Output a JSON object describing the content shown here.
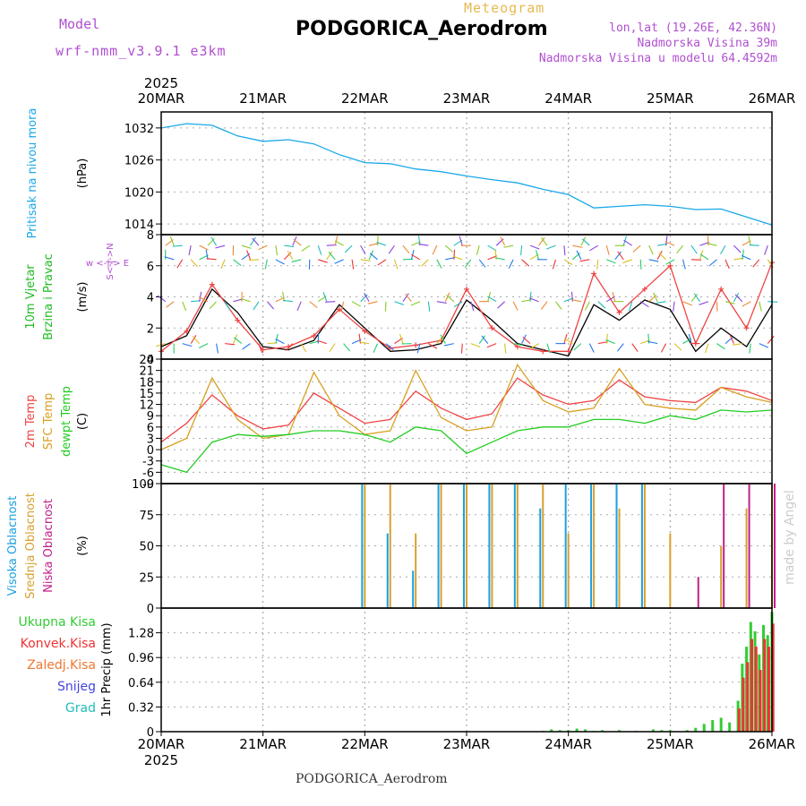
{
  "header": {
    "model_label": "Model",
    "model_name": "wrf-nmm_v3.9.1 e3km",
    "meteogram_label": "Meteogram",
    "station": "PODGORICA_Aerodrom",
    "coords": "lon,lat (19.26E, 42.36N)",
    "elevation": "Nadmorska Visina 39m",
    "elevation_model": "Nadmorska Visina u modelu 64.4592m",
    "watermark": "made by Angel"
  },
  "footer": {
    "station": "PODGORICA_Aerodrom"
  },
  "colors": {
    "pressure": "#1aa8e8",
    "temp2m": "#ee4444",
    "sfc": "#d8a020",
    "dewpt": "#22cc22",
    "high_cloud": "#1aa0e0",
    "mid_cloud": "#d8a030",
    "low_cloud": "#c0208a",
    "wind_label": "#22bb22",
    "wind_label2": "#22bb22",
    "compass": "#b050d0",
    "precip_total": "#33cc33",
    "precip_conv": "#ee3333",
    "precip_frozen": "#ee7733",
    "precip_snow": "#4444dd",
    "precip_grad": "#22bbbb"
  },
  "chart_data": [
    {
      "type": "line",
      "panel": "pressure",
      "ylabel_lines": [
        "Pritisak na nivou mora"
      ],
      "unit": "(hPa)",
      "ylim": [
        1012,
        1035
      ],
      "yticks": [
        1014,
        1020,
        1026,
        1032
      ],
      "x_hours": [
        0,
        6,
        12,
        18,
        24,
        30,
        36,
        42,
        48,
        54,
        60,
        66,
        72,
        78,
        84,
        90,
        96,
        102,
        108,
        114,
        120,
        126,
        132,
        138,
        144
      ],
      "series": [
        {
          "name": "Pritisak",
          "values": [
            1032.0,
            1032.8,
            1032.5,
            1030.5,
            1029.5,
            1029.8,
            1029.0,
            1027.0,
            1025.5,
            1025.3,
            1024.3,
            1023.8,
            1023.0,
            1022.3,
            1021.7,
            1020.5,
            1019.5,
            1017.0,
            1017.3,
            1017.6,
            1017.3,
            1016.7,
            1016.8,
            1015.3,
            1013.8
          ]
        }
      ]
    },
    {
      "type": "line",
      "panel": "wind",
      "ylabel_lines": [
        "10m Vjetar",
        "Brzina i Pravac"
      ],
      "unit": "(m/s)",
      "compass_label": "w <-|-> E",
      "compass_ns": "S<-|->N",
      "ylim": [
        0,
        8
      ],
      "yticks": [
        0,
        2,
        4,
        6,
        8
      ],
      "x_hours": [
        0,
        6,
        12,
        18,
        24,
        30,
        36,
        42,
        48,
        54,
        60,
        66,
        72,
        78,
        84,
        90,
        96,
        102,
        108,
        114,
        120,
        126,
        132,
        138,
        144
      ],
      "series": [
        {
          "name": "Brzina",
          "values": [
            0.8,
            1.5,
            4.5,
            3.0,
            0.8,
            0.6,
            1.2,
            3.5,
            2.0,
            0.5,
            0.6,
            1.0,
            3.8,
            2.5,
            1.0,
            0.6,
            0.2,
            3.5,
            2.5,
            3.8,
            3.2,
            0.5,
            2.0,
            0.8,
            3.5
          ]
        },
        {
          "name": "Udari",
          "values": [
            0.5,
            1.8,
            4.8,
            2.5,
            0.6,
            0.8,
            1.5,
            3.2,
            1.8,
            0.7,
            0.9,
            1.2,
            4.5,
            2.0,
            0.8,
            0.5,
            0.5,
            5.5,
            3.0,
            4.5,
            6.0,
            1.0,
            4.5,
            2.0,
            6.2
          ]
        }
      ]
    },
    {
      "type": "line",
      "panel": "temperature",
      "ylabel_lines": [
        "2m Temp",
        "SFC Temp",
        "dewpt Temp"
      ],
      "unit": "(C)",
      "ylim": [
        -9,
        24
      ],
      "yticks": [
        -9,
        -6,
        -3,
        0,
        3,
        6,
        9,
        12,
        15,
        18,
        21,
        24
      ],
      "x_hours": [
        0,
        6,
        12,
        18,
        24,
        30,
        36,
        42,
        48,
        54,
        60,
        66,
        72,
        78,
        84,
        90,
        96,
        102,
        108,
        114,
        120,
        126,
        132,
        138,
        144
      ],
      "series": [
        {
          "name": "2m Temp",
          "values": [
            2.0,
            7.0,
            14.5,
            9.0,
            5.5,
            6.5,
            15.0,
            11.0,
            7.0,
            8.0,
            15.5,
            11.0,
            8.0,
            9.5,
            19.0,
            14.5,
            12.0,
            13.0,
            18.5,
            14.0,
            13.0,
            12.5,
            16.5,
            15.5,
            13.0
          ]
        },
        {
          "name": "SFC Temp",
          "values": [
            0.0,
            3.0,
            19.0,
            8.0,
            3.0,
            4.0,
            20.5,
            9.0,
            4.0,
            5.0,
            21.0,
            8.5,
            5.0,
            6.0,
            22.5,
            13.0,
            10.0,
            11.0,
            21.5,
            12.0,
            11.0,
            10.5,
            16.5,
            14.0,
            12.5
          ]
        },
        {
          "name": "dewpt Temp",
          "values": [
            -4.0,
            -6.0,
            2.0,
            4.0,
            3.5,
            4.0,
            5.0,
            5.0,
            4.0,
            2.0,
            6.0,
            5.0,
            -1.0,
            2.0,
            5.0,
            6.0,
            6.0,
            8.0,
            8.0,
            7.0,
            9.0,
            8.0,
            10.5,
            10.0,
            10.5
          ]
        }
      ]
    },
    {
      "type": "bar",
      "panel": "clouds",
      "ylabel_lines": [
        "Visoka Oblacnost",
        "Srednja Oblacnost",
        "Niska Oblacnost"
      ],
      "unit": "(%)",
      "ylim": [
        0,
        100
      ],
      "yticks": [
        0,
        25,
        50,
        75,
        100
      ],
      "x_hours": [
        0,
        6,
        12,
        18,
        24,
        30,
        36,
        42,
        48,
        54,
        60,
        66,
        72,
        78,
        84,
        90,
        96,
        102,
        108,
        114,
        120,
        126,
        132,
        138,
        144
      ],
      "series": [
        {
          "name": "Visoka Oblacnost",
          "values": [
            0,
            0,
            0,
            0,
            0,
            0,
            0,
            0,
            100,
            60,
            30,
            100,
            100,
            100,
            100,
            80,
            100,
            100,
            100,
            100,
            0,
            0,
            0,
            0,
            0
          ]
        },
        {
          "name": "Srednja Oblacnost",
          "values": [
            0,
            0,
            0,
            0,
            0,
            0,
            0,
            0,
            100,
            100,
            60,
            100,
            100,
            100,
            100,
            100,
            60,
            100,
            80,
            100,
            60,
            0,
            50,
            80,
            100
          ]
        },
        {
          "name": "Niska Oblacnost",
          "values": [
            0,
            0,
            0,
            0,
            0,
            0,
            0,
            0,
            0,
            0,
            0,
            0,
            0,
            0,
            0,
            0,
            0,
            0,
            0,
            0,
            0,
            25,
            100,
            100,
            100
          ]
        }
      ]
    },
    {
      "type": "bar",
      "panel": "precip",
      "ylabel_lines": [
        "Ukupna Kisa",
        "Konvek.Kisa",
        "Zaledj.Kisa",
        "Snijeg",
        "Grad"
      ],
      "unit": "1hr Precip (mm)",
      "ylim": [
        0,
        1.6
      ],
      "yticks": [
        0,
        0.32,
        0.64,
        0.96,
        1.28
      ],
      "x_hours": [
        90,
        92,
        94,
        96,
        98,
        100,
        102,
        104,
        108,
        112,
        116,
        118,
        120,
        124,
        126,
        128,
        130,
        132,
        134,
        136,
        137,
        138,
        139,
        140,
        141,
        142,
        143,
        144
      ],
      "series": [
        {
          "name": "Ukupna Kisa",
          "values": [
            0.01,
            0.03,
            0.02,
            0.02,
            0.04,
            0.03,
            0.01,
            0.02,
            0.02,
            0.01,
            0.03,
            0.02,
            0.02,
            0.02,
            0.05,
            0.1,
            0.15,
            0.18,
            0.12,
            0.4,
            0.88,
            1.1,
            1.42,
            1.3,
            1.0,
            1.38,
            1.25,
            1.55
          ]
        },
        {
          "name": "Konvek.Kisa",
          "values": [
            0,
            0,
            0,
            0,
            0,
            0,
            0,
            0,
            0,
            0,
            0,
            0,
            0,
            0,
            0,
            0,
            0,
            0,
            0,
            0.3,
            0.7,
            0.9,
            1.2,
            1.1,
            0.8,
            1.2,
            1.1,
            1.4
          ]
        }
      ]
    }
  ],
  "axes": {
    "year": "2025",
    "date_labels": [
      "20MAR",
      "21MAR",
      "22MAR",
      "23MAR",
      "24MAR",
      "25MAR",
      "26MAR"
    ]
  }
}
